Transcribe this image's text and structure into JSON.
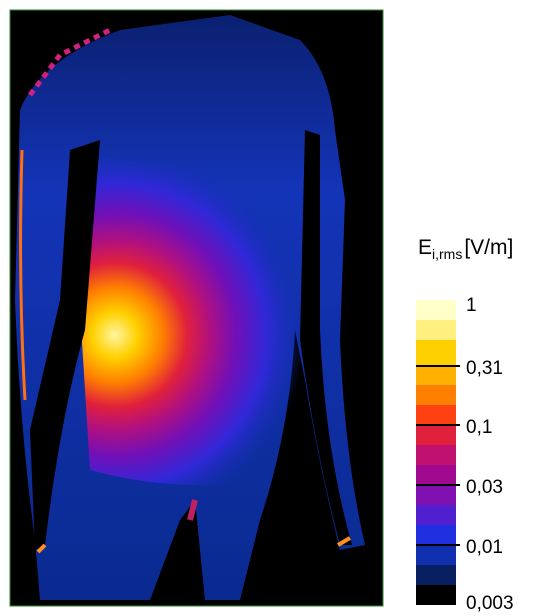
{
  "legend": {
    "title": {
      "symbol": "E",
      "subscript": "i,rms",
      "unit": "[V/m]"
    },
    "labels": [
      "1",
      "0,31",
      "0,1",
      "0,03",
      "0,01",
      "0,003"
    ]
  }
}
